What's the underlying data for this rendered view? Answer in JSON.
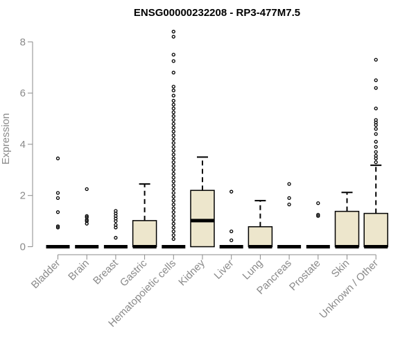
{
  "chart_data": {
    "type": "box",
    "title": "ENSG00000232208 - RP3-477M7.5",
    "xlabel": "",
    "ylabel": "Expression",
    "ylim": [
      0,
      8.5
    ],
    "yticks": [
      0,
      2,
      4,
      6,
      8
    ],
    "box_fill": "#ede6cc",
    "categories": [
      "Bladder",
      "Brain",
      "Breast",
      "Gastric",
      "Hematopoietic cells",
      "Kidney",
      "Liver",
      "Lung",
      "Pancreas",
      "Prostate",
      "Skin",
      "Unknown / Other"
    ],
    "boxes": [
      {
        "q1": 0,
        "median": 0,
        "q3": 0,
        "whisker_low": 0,
        "whisker_high": 0,
        "outliers": [
          0.75,
          0.8,
          1.35,
          1.9,
          2.1,
          3.45
        ]
      },
      {
        "q1": 0,
        "median": 0,
        "q3": 0,
        "whisker_low": 0,
        "whisker_high": 0,
        "outliers": [
          0.9,
          1.0,
          1.05,
          1.15,
          1.2,
          2.25
        ]
      },
      {
        "q1": 0,
        "median": 0,
        "q3": 0,
        "whisker_low": 0,
        "whisker_high": 0,
        "outliers": [
          0.35,
          0.75,
          0.85,
          1.0,
          1.1,
          1.2,
          1.3,
          1.4
        ]
      },
      {
        "q1": 0,
        "median": 0,
        "q3": 1.02,
        "whisker_low": 0,
        "whisker_high": 2.45,
        "outliers": []
      },
      {
        "q1": 0,
        "median": 0,
        "q3": 0,
        "whisker_low": 0,
        "whisker_high": 0,
        "outliers": [
          0.3,
          0.45,
          0.6,
          0.75,
          0.9,
          1.05,
          1.2,
          1.35,
          1.5,
          1.65,
          1.8,
          1.95,
          2.1,
          2.25,
          2.4,
          2.55,
          2.7,
          2.85,
          3.0,
          3.15,
          3.3,
          3.45,
          3.6,
          3.75,
          3.9,
          4.05,
          4.2,
          4.35,
          4.5,
          4.65,
          4.8,
          4.95,
          5.1,
          5.25,
          5.4,
          5.55,
          5.7,
          5.9,
          6.1,
          6.25,
          6.8,
          7.25,
          7.5,
          8.2,
          8.4
        ]
      },
      {
        "q1": 0,
        "median": 1.02,
        "q3": 2.2,
        "whisker_low": 0,
        "whisker_high": 3.5,
        "outliers": []
      },
      {
        "q1": 0,
        "median": 0,
        "q3": 0,
        "whisker_low": 0,
        "whisker_high": 0,
        "outliers": [
          0.25,
          0.6,
          2.15
        ]
      },
      {
        "q1": 0,
        "median": 0,
        "q3": 0.78,
        "whisker_low": 0,
        "whisker_high": 1.8,
        "outliers": []
      },
      {
        "q1": 0,
        "median": 0,
        "q3": 0,
        "whisker_low": 0,
        "whisker_high": 0,
        "outliers": [
          1.65,
          1.9,
          2.45
        ]
      },
      {
        "q1": 0,
        "median": 0,
        "q3": 0,
        "whisker_low": 0,
        "whisker_high": 0,
        "outliers": [
          1.2,
          1.25,
          1.7
        ]
      },
      {
        "q1": 0,
        "median": 0,
        "q3": 1.38,
        "whisker_low": 0,
        "whisker_high": 2.12,
        "outliers": []
      },
      {
        "q1": 0,
        "median": 0,
        "q3": 1.3,
        "whisker_low": 0,
        "whisker_high": 3.18,
        "outliers": [
          3.3,
          3.45,
          3.55,
          3.7,
          3.9,
          4.1,
          4.4,
          4.6,
          4.75,
          4.85,
          4.95,
          5.4,
          6.2,
          6.5,
          7.3
        ]
      }
    ]
  }
}
